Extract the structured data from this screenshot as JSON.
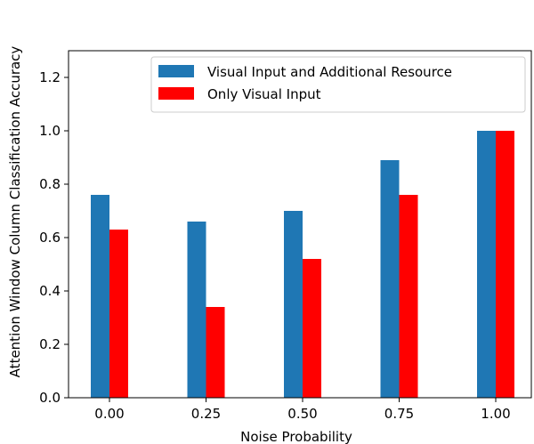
{
  "chart_data": {
    "type": "bar",
    "categories": [
      "0.00",
      "0.25",
      "0.50",
      "0.75",
      "1.00"
    ],
    "series": [
      {
        "name": "Visual Input and Additional Resource",
        "color": "#1f77b4",
        "values": [
          0.76,
          0.66,
          0.7,
          0.89,
          1.0
        ]
      },
      {
        "name": "Only Visual Input",
        "color": "#ff0000",
        "values": [
          0.63,
          0.34,
          0.52,
          0.76,
          1.0
        ]
      }
    ],
    "xlabel": "Noise Probability",
    "ylabel": "Attention Window Column Classification Accuracy",
    "ylim": [
      0,
      1.3
    ],
    "yticks": [
      "0.0",
      "0.2",
      "0.4",
      "0.6",
      "0.8",
      "1.0",
      "1.2"
    ],
    "ytick_values": [
      0,
      0.2,
      0.4,
      0.6,
      0.8,
      1.0,
      1.2
    ],
    "legend_position": "top-right",
    "grid": false
  }
}
